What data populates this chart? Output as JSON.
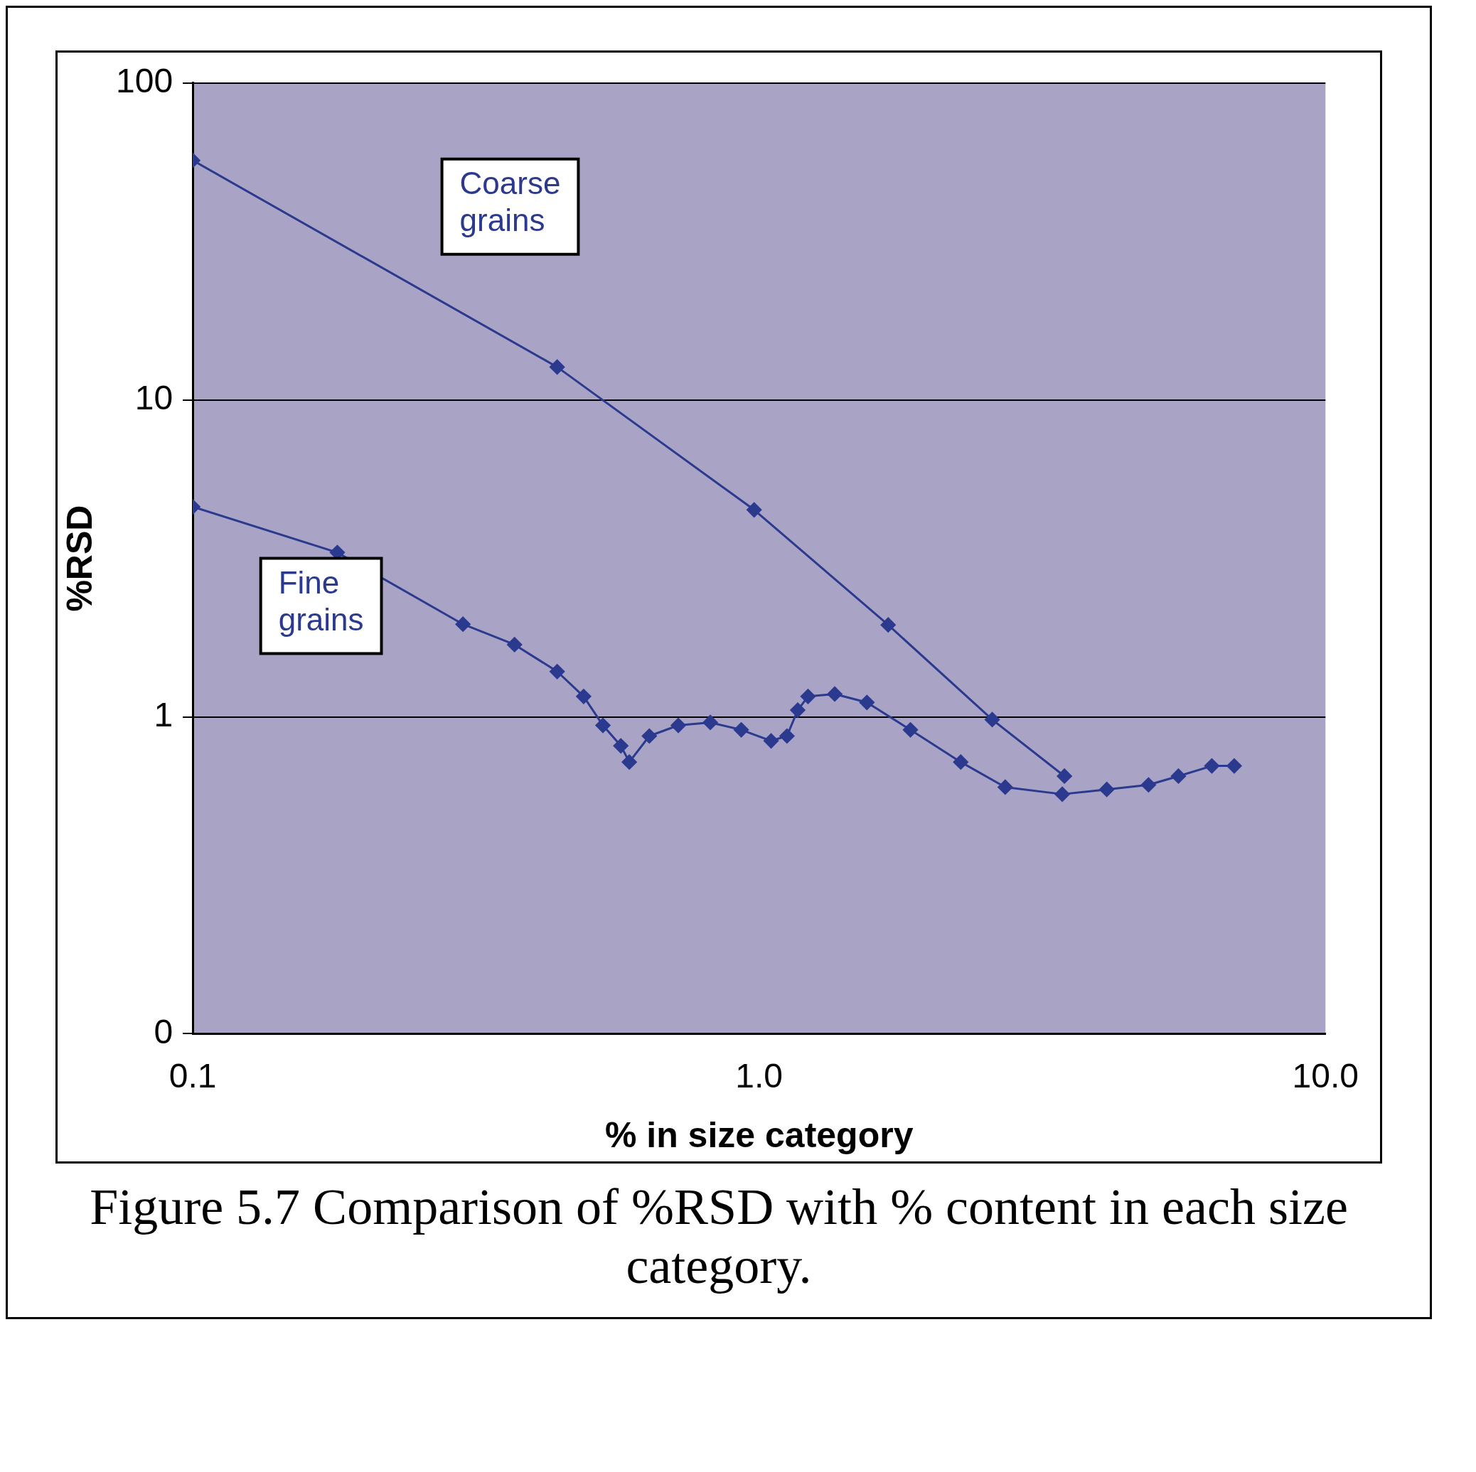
{
  "chart_data": {
    "type": "line",
    "xlabel": "% in size category",
    "ylabel": "%RSD",
    "log": "xy",
    "xlim": [
      0.1,
      10
    ],
    "ylim": [
      0.1,
      100
    ],
    "xticks": [
      0.1,
      {
        "value": 1,
        "label": "1.0"
      },
      {
        "value": 10,
        "label": "10.0"
      }
    ],
    "yticks": [
      {
        "value": 0.1,
        "label": "0"
      },
      1,
      10,
      100
    ],
    "grid": "y",
    "legend": false,
    "marker": "diamond",
    "line_style": "solid",
    "series": [
      {
        "name": "Coarse grains",
        "color": "#2b3a8f",
        "x": [
          0.1,
          0.44,
          0.98,
          1.69,
          2.58,
          3.46
        ],
        "values": [
          57,
          12.7,
          4.5,
          1.95,
          0.98,
          0.65
        ]
      },
      {
        "name": "Fine grains",
        "color": "#2b3a8f",
        "x": [
          0.1,
          0.18,
          0.3,
          0.37,
          0.44,
          0.49,
          0.53,
          0.57,
          0.59,
          0.64,
          0.72,
          0.82,
          0.93,
          1.05,
          1.12,
          1.17,
          1.22,
          1.36,
          1.55,
          1.85,
          2.27,
          2.72,
          3.43,
          4.11,
          4.87,
          5.5,
          6.3,
          6.9
        ],
        "values": [
          4.6,
          3.3,
          1.96,
          1.69,
          1.39,
          1.16,
          0.94,
          0.81,
          0.72,
          0.87,
          0.94,
          0.96,
          0.91,
          0.84,
          0.87,
          1.05,
          1.16,
          1.18,
          1.11,
          0.91,
          0.72,
          0.6,
          0.57,
          0.59,
          0.61,
          0.65,
          0.7,
          0.7
        ]
      }
    ],
    "annotations": [
      "Figure 5.7  Comparison of %RSD with % content in each size category."
    ]
  }
}
